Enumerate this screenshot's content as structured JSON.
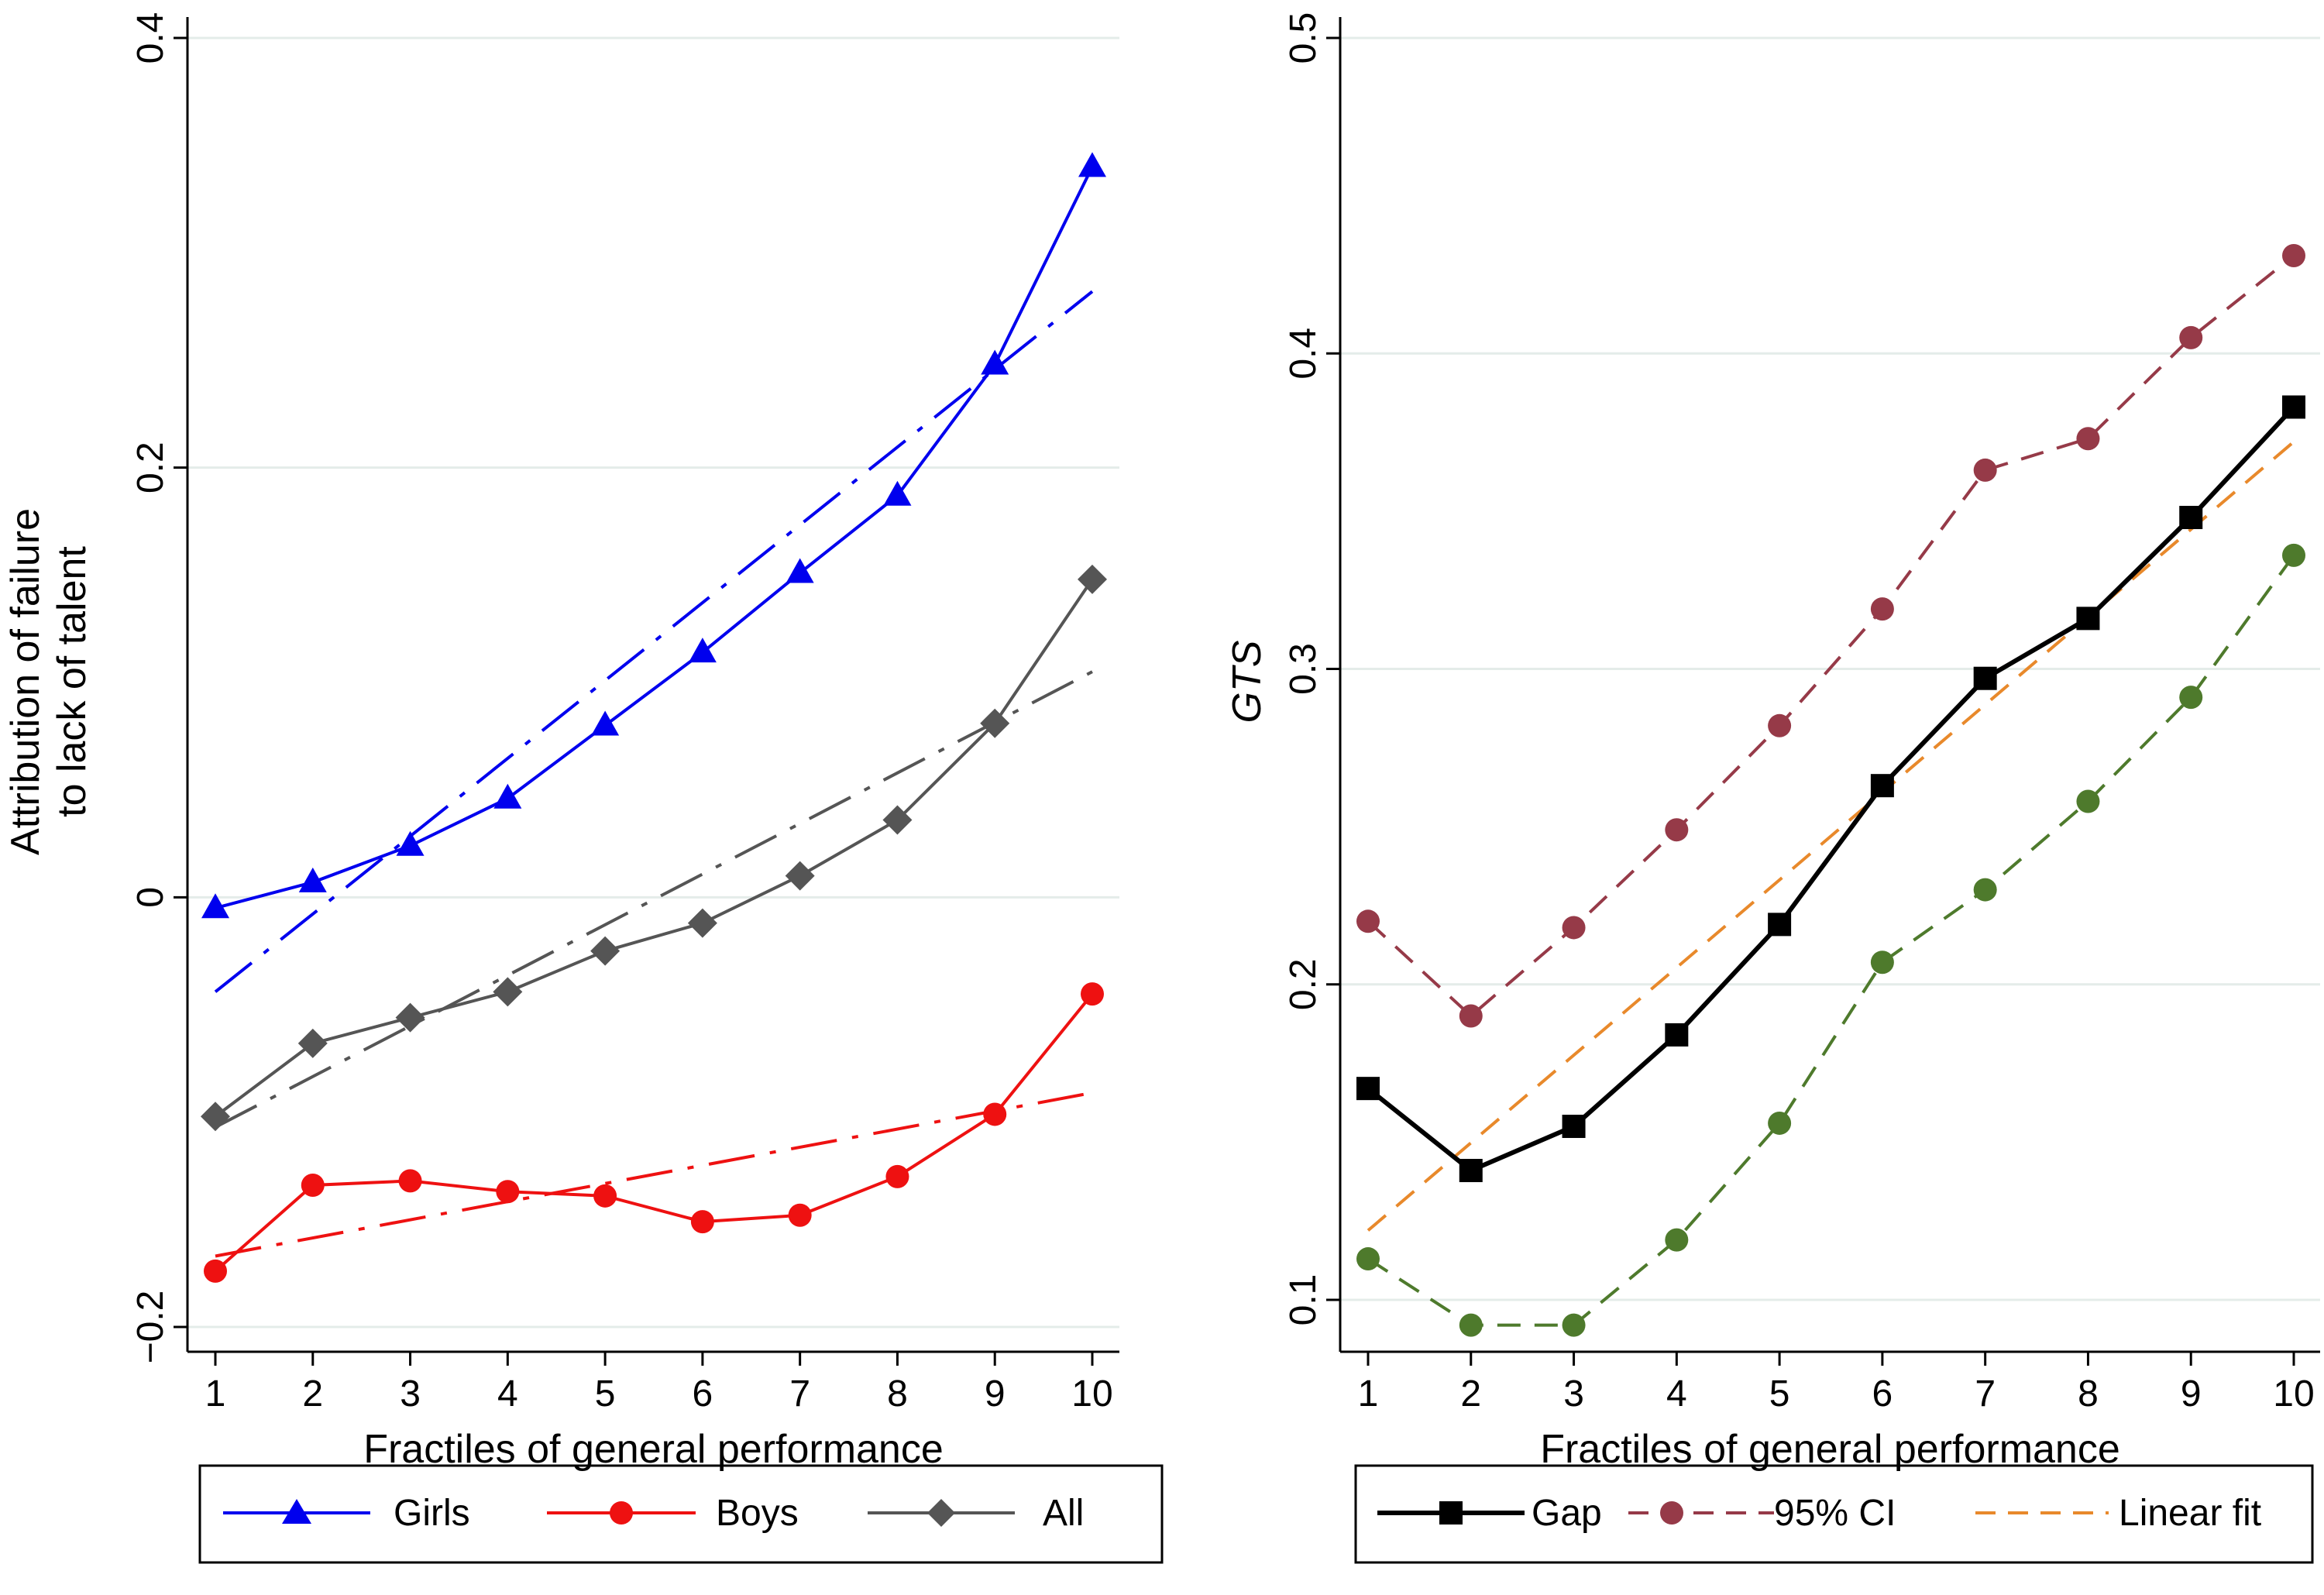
{
  "chart_data": [
    {
      "type": "line",
      "xlabel": "Fractiles of general performance",
      "ylabel_lines": [
        "Attribution of failure",
        "to lack of talent"
      ],
      "xlim": [
        1,
        10
      ],
      "ylim": [
        -0.2,
        0.4
      ],
      "x": [
        1,
        2,
        3,
        4,
        5,
        6,
        7,
        8,
        9,
        10
      ],
      "x_ticks": [
        "1",
        "2",
        "3",
        "4",
        "5",
        "6",
        "7",
        "8",
        "9",
        "10"
      ],
      "y_ticks": [
        {
          "value": -0.2,
          "label": "−0.2"
        },
        {
          "value": 0,
          "label": "0"
        },
        {
          "value": 0.2,
          "label": "0.2"
        },
        {
          "value": 0.4,
          "label": "0.4"
        }
      ],
      "grid": "horizontal",
      "legend_position": "bottom",
      "series": [
        {
          "name": "Girls",
          "color": "#0000ee",
          "marker": "triangle",
          "dash": "solid",
          "values": [
            -0.005,
            0.007,
            0.024,
            0.046,
            0.08,
            0.114,
            0.151,
            0.187,
            0.248,
            0.34
          ]
        },
        {
          "name": "Boys",
          "color": "#ee1111",
          "marker": "circle",
          "dash": "solid",
          "values": [
            -0.174,
            -0.134,
            -0.132,
            -0.137,
            -0.139,
            -0.151,
            -0.148,
            -0.13,
            -0.101,
            -0.045
          ]
        },
        {
          "name": "All",
          "color": "#555555",
          "marker": "diamond",
          "dash": "solid",
          "values": [
            -0.102,
            -0.068,
            -0.056,
            -0.044,
            -0.025,
            -0.012,
            0.01,
            0.036,
            0.081,
            0.148
          ]
        }
      ],
      "fit_lines": [
        {
          "color": "#0000ee",
          "from": [
            1,
            -0.044
          ],
          "to": [
            10,
            0.282
          ]
        },
        {
          "color": "#ee1111",
          "from": [
            1,
            -0.167
          ],
          "to": [
            10,
            -0.091
          ]
        },
        {
          "color": "#555555",
          "from": [
            1,
            -0.107
          ],
          "to": [
            10,
            0.105
          ]
        }
      ]
    },
    {
      "type": "line",
      "xlabel": "Fractiles of general performance",
      "ylabel": "GTS",
      "xlim": [
        1,
        10
      ],
      "ylim": [
        0.092,
        0.5
      ],
      "x": [
        1,
        2,
        3,
        4,
        5,
        6,
        7,
        8,
        9,
        10
      ],
      "x_ticks": [
        "1",
        "2",
        "3",
        "4",
        "5",
        "6",
        "7",
        "8",
        "9",
        "10"
      ],
      "y_ticks": [
        {
          "value": 0.1,
          "label": "0.1"
        },
        {
          "value": 0.2,
          "label": "0.2"
        },
        {
          "value": 0.3,
          "label": "0.3"
        },
        {
          "value": 0.4,
          "label": "0.4"
        },
        {
          "value": 0.5,
          "label": "0.5"
        }
      ],
      "grid": "horizontal",
      "legend_position": "bottom",
      "series": [
        {
          "name": "Gap",
          "color": "#000000",
          "marker": "square",
          "dash": "solid",
          "values": [
            0.167,
            0.141,
            0.155,
            0.184,
            0.219,
            0.263,
            0.297,
            0.316,
            0.348,
            0.383
          ]
        },
        {
          "name": "95% CI",
          "color": "#963a48",
          "marker": "circle",
          "dash": "dashed",
          "values": [
            0.22,
            0.19,
            0.218,
            0.249,
            0.282,
            0.319,
            0.363,
            0.373,
            0.405,
            0.431
          ]
        },
        {
          "name": "",
          "color": "#4e7a2c",
          "marker": "circle",
          "dash": "dashed",
          "values": [
            0.113,
            0.092,
            0.092,
            0.119,
            0.156,
            0.207,
            0.23,
            0.258,
            0.291,
            0.336
          ]
        }
      ],
      "fit_lines": [
        {
          "name": "Linear fit",
          "color": "#e8892b",
          "from": [
            1,
            0.122
          ],
          "to": [
            10,
            0.372
          ]
        }
      ]
    }
  ],
  "legend": {
    "left": [
      "Girls",
      "Boys",
      "All"
    ],
    "right": [
      "Gap",
      "95% CI",
      "Linear fit"
    ]
  }
}
